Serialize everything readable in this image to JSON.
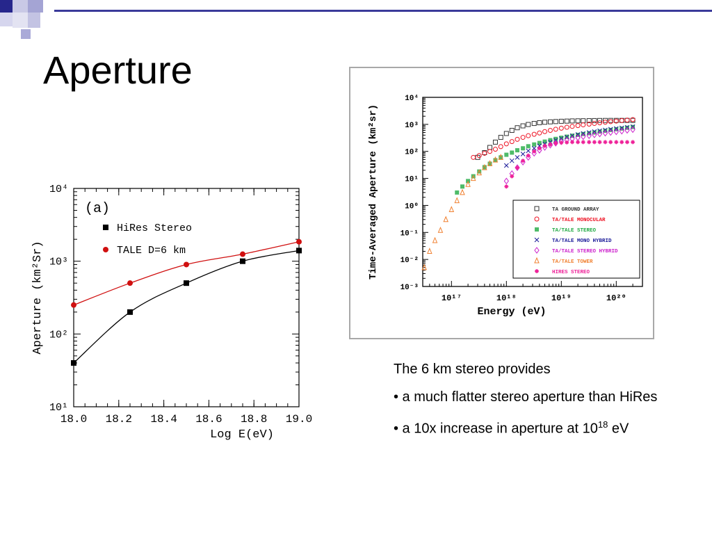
{
  "slide": {
    "title": "Aperture",
    "text_intro": "The 6 km stereo provides",
    "bullet1": "• a much flatter stereo aperture than HiRes",
    "bullet2_prefix": "• a 10x increase in aperture at 10",
    "bullet2_sup": "18",
    "bullet2_suffix": " eV"
  },
  "chart_data": [
    {
      "type": "line",
      "panel_label": "(a)",
      "xlabel": "Log E(eV)",
      "ylabel": "Aperture (km²Sr)",
      "xlim": [
        18.0,
        19.0
      ],
      "ylim": [
        10,
        10000
      ],
      "y_scale": "log",
      "x_ticks": [
        "18.0",
        "18.2",
        "18.4",
        "18.6",
        "18.8",
        "19.0"
      ],
      "y_ticks": [
        "10¹",
        "10²",
        "10³",
        "10⁴"
      ],
      "legend_placement": "top-left",
      "series": [
        {
          "name": "HiRes Stereo",
          "color": "#000000",
          "marker": "square",
          "x": [
            18.0,
            18.25,
            18.5,
            18.75,
            19.0
          ],
          "y": [
            40,
            200,
            500,
            1000,
            1400
          ]
        },
        {
          "name": "TALE D=6 km",
          "color": "#d01010",
          "marker": "circle",
          "x": [
            18.0,
            18.25,
            18.5,
            18.75,
            19.0
          ],
          "y": [
            250,
            500,
            900,
            1250,
            1850
          ]
        }
      ]
    },
    {
      "type": "scatter",
      "xlabel": "Energy (eV)",
      "ylabel": "Time-Averaged Aperture (km²sr)",
      "x_scale": "log",
      "y_scale": "log",
      "xlim": [
        3e+16,
        3e+20
      ],
      "ylim": [
        0.001,
        10000
      ],
      "x_ticks": [
        "10¹⁷",
        "10¹⁸",
        "10¹⁹",
        "10²⁰"
      ],
      "y_ticks": [
        "10⁻³",
        "10⁻²",
        "10⁻¹",
        "10⁰",
        "10¹",
        "10²",
        "10³",
        "10⁴"
      ],
      "legend_placement": "bottom-right",
      "series": [
        {
          "name": "TA GROUND ARRAY",
          "color": "#333333",
          "marker": "open-square",
          "x": [
            3e+17,
            4e+17,
            5e+17,
            6.3e+17,
            7.9e+17,
            1e+18,
            1.26e+18,
            1.58e+18,
            2e+18,
            2.5e+18,
            3.2e+18,
            4e+18,
            5e+18,
            6.3e+18,
            7.9e+18,
            1e+19,
            1.26e+19,
            1.58e+19,
            2e+19,
            2.5e+19,
            3.2e+19,
            4e+19,
            5e+19,
            6.3e+19,
            7.9e+19,
            1e+20,
            1.26e+20,
            1.58e+20,
            2e+20
          ],
          "y": [
            60,
            90,
            140,
            220,
            330,
            460,
            600,
            750,
            880,
            990,
            1080,
            1150,
            1200,
            1240,
            1270,
            1300,
            1320,
            1340,
            1350,
            1360,
            1370,
            1380,
            1390,
            1395,
            1400,
            1400,
            1400,
            1400,
            1400
          ]
        },
        {
          "name": "TA/TALE MONOCULAR",
          "color": "#ee1122",
          "marker": "open-circle",
          "x": [
            2.5e+17,
            3.2e+17,
            4e+17,
            5e+17,
            6.3e+17,
            7.9e+17,
            1e+18,
            1.26e+18,
            1.58e+18,
            2e+18,
            2.5e+18,
            3.2e+18,
            4e+18,
            5e+18,
            6.3e+18,
            7.9e+18,
            1e+19,
            1.26e+19,
            1.58e+19,
            2e+19,
            2.5e+19,
            3.2e+19,
            4e+19,
            5e+19,
            6.3e+19,
            7.9e+19,
            1e+20,
            1.26e+20,
            1.58e+20,
            2e+20
          ],
          "y": [
            60,
            70,
            85,
            100,
            120,
            150,
            190,
            230,
            280,
            330,
            380,
            430,
            480,
            540,
            600,
            660,
            720,
            780,
            840,
            900,
            960,
            1020,
            1080,
            1140,
            1200,
            1260,
            1320,
            1380,
            1440,
            1500
          ]
        },
        {
          "name": "TA/TALE STEREO",
          "color": "#22aa44",
          "marker": "square",
          "x": [
            1.26e+17,
            1.58e+17,
            2e+17,
            2.5e+17,
            3.2e+17,
            4e+17,
            5e+17,
            6.3e+17,
            7.9e+17,
            1e+18,
            1.26e+18,
            1.58e+18,
            2e+18,
            2.5e+18,
            3.2e+18,
            4e+18,
            5e+18,
            6.3e+18,
            7.9e+18,
            1e+19,
            1.26e+19,
            1.58e+19,
            2e+19,
            2.5e+19,
            3.2e+19,
            4e+19,
            5e+19,
            6.3e+19,
            7.9e+19,
            1e+20,
            1.26e+20,
            1.58e+20,
            2e+20
          ],
          "y": [
            3,
            5,
            8,
            12,
            18,
            26,
            35,
            47,
            60,
            75,
            90,
            110,
            130,
            155,
            180,
            205,
            230,
            260,
            290,
            320,
            350,
            380,
            410,
            440,
            470,
            500,
            540,
            580,
            620,
            660,
            700,
            750,
            800
          ]
        },
        {
          "name": "TA/TALE MONO HYBRID",
          "color": "#1a1a99",
          "marker": "cross",
          "x": [
            1e+18,
            1.26e+18,
            1.58e+18,
            2e+18,
            2.5e+18,
            3.2e+18,
            4e+18,
            5e+18,
            6.3e+18,
            7.9e+18,
            1e+19,
            1.26e+19,
            1.58e+19,
            2e+19,
            2.5e+19,
            3.2e+19,
            4e+19,
            5e+19,
            6.3e+19,
            7.9e+19,
            1e+20,
            1.26e+20,
            1.58e+20,
            2e+20
          ],
          "y": [
            30,
            45,
            60,
            80,
            105,
            130,
            160,
            190,
            220,
            260,
            300,
            340,
            380,
            420,
            460,
            500,
            540,
            580,
            620,
            660,
            700,
            740,
            780,
            820
          ]
        },
        {
          "name": "TA/TALE STEREO HYBRID",
          "color": "#cc22cc",
          "marker": "open-diamond",
          "x": [
            1e+18,
            1.26e+18,
            1.58e+18,
            2e+18,
            2.5e+18,
            3.2e+18,
            4e+18,
            5e+18,
            6.3e+18,
            7.9e+18,
            1e+19,
            1.26e+19,
            1.58e+19,
            2e+19,
            2.5e+19,
            3.2e+19,
            4e+19,
            5e+19,
            6.3e+19,
            7.9e+19,
            1e+20,
            1.26e+20,
            1.58e+20,
            2e+20
          ],
          "y": [
            8,
            15,
            25,
            40,
            60,
            85,
            110,
            140,
            170,
            200,
            230,
            260,
            290,
            320,
            350,
            380,
            410,
            440,
            470,
            500,
            530,
            560,
            600,
            640
          ]
        },
        {
          "name": "TA/TALE TOWER",
          "color": "#f08030",
          "marker": "open-triangle",
          "x": [
            3.2e+16,
            4e+16,
            5e+16,
            6.3e+16,
            7.9e+16,
            1e+17,
            1.26e+17,
            1.58e+17,
            2e+17,
            2.5e+17,
            3.2e+17,
            4e+17,
            5e+17,
            6.3e+17,
            7.9e+17
          ],
          "y": [
            0.005,
            0.02,
            0.05,
            0.12,
            0.3,
            0.7,
            1.5,
            3,
            6,
            10,
            16,
            25,
            35,
            48,
            60
          ]
        },
        {
          "name": "HIRES STEREO",
          "color": "#ee2299",
          "marker": "star",
          "x": [
            1e+18,
            1.26e+18,
            1.58e+18,
            2e+18,
            2.5e+18,
            3.2e+18,
            4e+18,
            5e+18,
            6.3e+18,
            7.9e+18,
            1e+19,
            1.26e+19,
            1.58e+19,
            2e+19,
            2.5e+19,
            3.2e+19,
            4e+19,
            5e+19,
            6.3e+19,
            7.9e+19,
            1e+20,
            1.26e+20,
            1.58e+20,
            2e+20
          ],
          "y": [
            5,
            12,
            25,
            45,
            70,
            100,
            130,
            160,
            180,
            200,
            210,
            215,
            220,
            220,
            220,
            220,
            220,
            220,
            220,
            220,
            220,
            220,
            220,
            220
          ]
        }
      ]
    }
  ]
}
